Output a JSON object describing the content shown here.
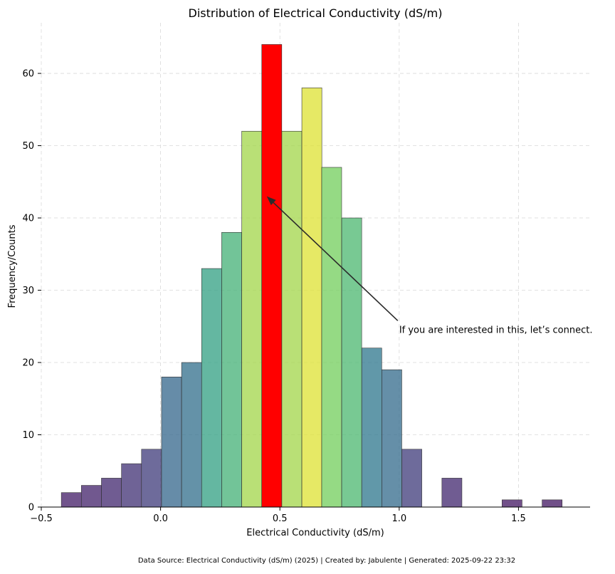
{
  "chart_data": {
    "type": "bar",
    "title": "Distribution of Electrical Conductivity (dS/m)",
    "xlabel": "Electrical Conductivity (dS/m)",
    "ylabel": "Frequency/Counts",
    "xlim": [
      -0.5,
      1.8
    ],
    "ylim": [
      0,
      67
    ],
    "x_ticks": [
      "−0.5",
      "0.0",
      "0.5",
      "1.0",
      "1.5"
    ],
    "x_tick_values": [
      -0.5,
      0.0,
      0.5,
      1.0,
      1.5
    ],
    "y_ticks": [
      "0",
      "10",
      "20",
      "30",
      "40",
      "50",
      "60"
    ],
    "y_tick_values": [
      0,
      10,
      20,
      30,
      40,
      50,
      60
    ],
    "grid": true,
    "bin_width": 0.0838,
    "bins": [
      {
        "x0": -0.416,
        "count": 2
      },
      {
        "x0": -0.332,
        "count": 3
      },
      {
        "x0": -0.248,
        "count": 4
      },
      {
        "x0": -0.164,
        "count": 6
      },
      {
        "x0": -0.08,
        "count": 8
      },
      {
        "x0": 0.004,
        "count": 18
      },
      {
        "x0": 0.088,
        "count": 20
      },
      {
        "x0": 0.172,
        "count": 33
      },
      {
        "x0": 0.256,
        "count": 38
      },
      {
        "x0": 0.34,
        "count": 52
      },
      {
        "x0": 0.424,
        "count": 64,
        "highlight": true
      },
      {
        "x0": 0.508,
        "count": 52
      },
      {
        "x0": 0.592,
        "count": 58
      },
      {
        "x0": 0.675,
        "count": 47
      },
      {
        "x0": 0.759,
        "count": 40
      },
      {
        "x0": 0.843,
        "count": 22
      },
      {
        "x0": 0.927,
        "count": 19
      },
      {
        "x0": 1.011,
        "count": 8
      },
      {
        "x0": 1.095,
        "count": 0
      },
      {
        "x0": 1.179,
        "count": 4
      },
      {
        "x0": 1.263,
        "count": 0
      },
      {
        "x0": 1.347,
        "count": 0
      },
      {
        "x0": 1.431,
        "count": 1
      },
      {
        "x0": 1.515,
        "count": 0
      },
      {
        "x0": 1.599,
        "count": 1
      }
    ],
    "highlight_color": "#ff0000",
    "annotation": {
      "text": "If you are interested in this, let’s connect.",
      "text_x": 1.0,
      "text_y": 25,
      "arrow_x": 0.445,
      "arrow_y": 43
    },
    "footer": "Data Source: Electrical Conductivity (dS/m) (2025) | Created by: Jabulente | Generated: 2025-09-22 23:32"
  }
}
